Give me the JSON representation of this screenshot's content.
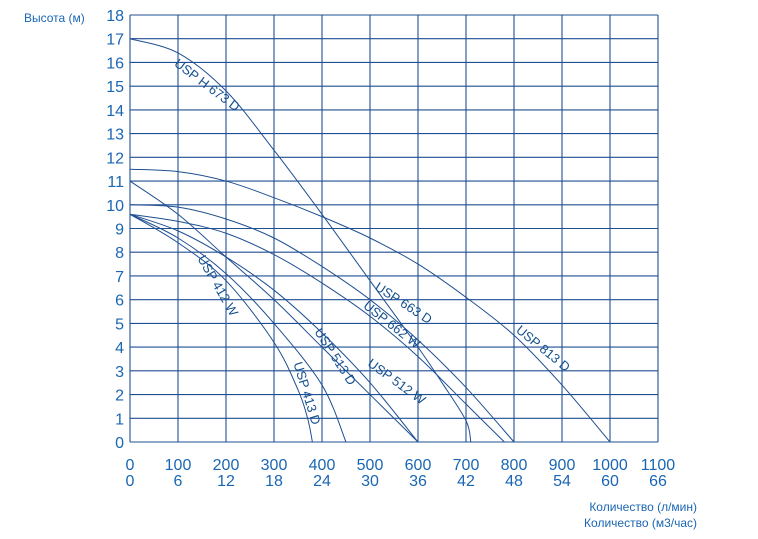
{
  "chart_data": {
    "type": "line",
    "ylabel": "Высота (м)",
    "xlabels": [
      "Количество (л/мин)",
      "Количество (м3/час)"
    ],
    "xlim": [
      0,
      1000
    ],
    "ylim": [
      0,
      18
    ],
    "grid": true,
    "y_ticks": [
      "0",
      "1",
      "2",
      "3",
      "4",
      "5",
      "6",
      "7",
      "8",
      "9",
      "10",
      "11",
      "12",
      "13",
      "14",
      "15",
      "16",
      "17",
      "18"
    ],
    "x_ticks_lpm": [
      {
        "value": 0,
        "label": "0"
      },
      {
        "value": 100,
        "label": "100"
      },
      {
        "value": 200,
        "label": "200"
      },
      {
        "value": 300,
        "label": "300"
      },
      {
        "value": 400,
        "label": "400"
      },
      {
        "value": 500,
        "label": "500"
      },
      {
        "value": 600,
        "label": "600"
      },
      {
        "value": 700,
        "label": "700"
      },
      {
        "value": 800,
        "label": "800"
      },
      {
        "value": 900,
        "label": "900"
      },
      {
        "value": 1000,
        "label": "1000"
      },
      {
        "value": 1100,
        "label": "1100"
      }
    ],
    "x_ticks_m3h": [
      {
        "value": 0,
        "label": "0"
      },
      {
        "value": 100,
        "label": "6"
      },
      {
        "value": 200,
        "label": "12"
      },
      {
        "value": 300,
        "label": "18"
      },
      {
        "value": 400,
        "label": "24"
      },
      {
        "value": 500,
        "label": "30"
      },
      {
        "value": 600,
        "label": "36"
      },
      {
        "value": 700,
        "label": "42"
      },
      {
        "value": 800,
        "label": "48"
      },
      {
        "value": 900,
        "label": "54"
      },
      {
        "value": 1000,
        "label": "60"
      },
      {
        "value": 1100,
        "label": "66"
      }
    ],
    "series": [
      {
        "name": "USP H 673 D",
        "label_at": [
          155,
          14.9,
          37
        ],
        "x": [
          0,
          100,
          200,
          300,
          400,
          500,
          600,
          650,
          700,
          710
        ],
        "y": [
          17,
          16.4,
          14.8,
          12.3,
          9.6,
          6.8,
          4.0,
          2.5,
          0.9,
          0
        ]
      },
      {
        "name": "USP 813 D",
        "label_at": [
          855,
          3.8,
          39
        ],
        "x": [
          0,
          100,
          200,
          300,
          400,
          500,
          600,
          700,
          800,
          900,
          1000
        ],
        "y": [
          11.5,
          11.4,
          11.0,
          10.3,
          9.5,
          8.6,
          7.5,
          6.1,
          4.5,
          2.4,
          0
        ]
      },
      {
        "name": "USP 663 D",
        "label_at": [
          565,
          5.7,
          33
        ],
        "x": [
          0,
          100,
          200,
          300,
          400,
          500,
          600,
          700,
          800
        ],
        "y": [
          10.0,
          9.9,
          9.4,
          8.6,
          7.4,
          6.0,
          4.3,
          2.3,
          0
        ]
      },
      {
        "name": "USP 662 W",
        "label_at": [
          540,
          4.8,
          38
        ],
        "x": [
          0,
          100,
          200,
          300,
          400,
          500,
          600,
          700,
          780
        ],
        "y": [
          9.6,
          9.3,
          8.8,
          7.9,
          6.7,
          5.3,
          3.6,
          1.6,
          0
        ]
      },
      {
        "name": "USP 512 W",
        "label_at": [
          550,
          2.4,
          36
        ],
        "x": [
          0,
          100,
          200,
          300,
          400,
          500,
          600
        ],
        "y": [
          9.6,
          8.9,
          7.8,
          6.4,
          4.6,
          2.5,
          0
        ]
      },
      {
        "name": "USP 513 D",
        "label_at": [
          420,
          3.5,
          57
        ],
        "x": [
          0,
          100,
          200,
          300,
          400,
          500,
          600
        ],
        "y": [
          11.0,
          9.6,
          7.8,
          6.0,
          4.0,
          2.0,
          0
        ]
      },
      {
        "name": "USP 412 W",
        "label_at": [
          175,
          6.5,
          60
        ],
        "x": [
          0,
          100,
          200,
          300,
          400,
          450
        ],
        "y": [
          9.6,
          8.6,
          7.1,
          5.0,
          2.4,
          0
        ]
      },
      {
        "name": "USP 413 D",
        "label_at": [
          360,
          2.0,
          73
        ],
        "x": [
          0,
          100,
          200,
          300,
          350,
          370,
          380
        ],
        "y": [
          9.6,
          8.4,
          6.8,
          4.2,
          2.2,
          1.0,
          0
        ]
      }
    ]
  }
}
